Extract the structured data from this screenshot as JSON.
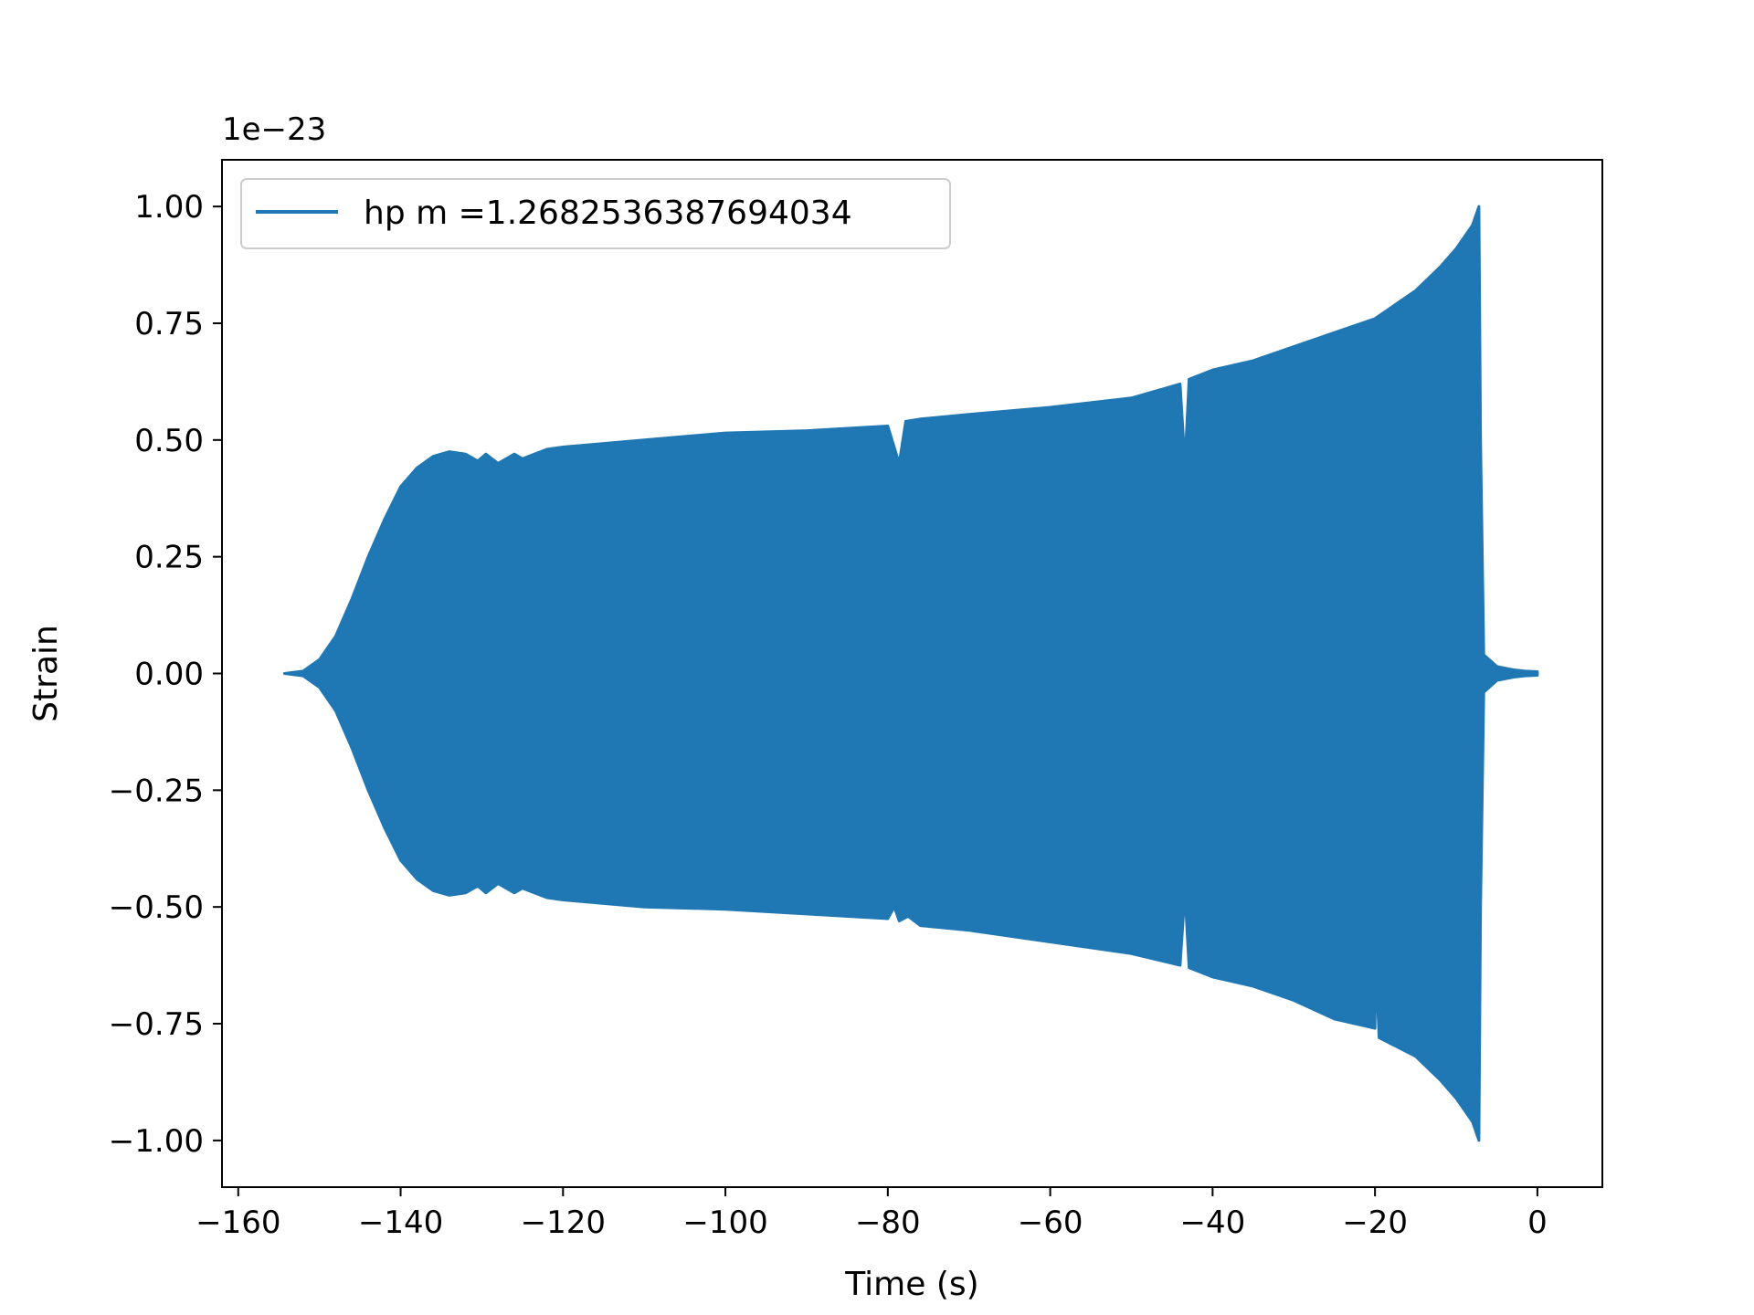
{
  "chart_data": {
    "type": "line",
    "xlabel": "Time (s)",
    "ylabel": "Strain",
    "offset_text": "1e−23",
    "xlim": [
      -162,
      8
    ],
    "ylim": [
      -1.1,
      1.1
    ],
    "x_ticks": [
      -160,
      -140,
      -120,
      -100,
      -80,
      -60,
      -40,
      -20,
      0
    ],
    "x_tick_labels": [
      "−160",
      "−140",
      "−120",
      "−100",
      "−80",
      "−60",
      "−40",
      "−20",
      "0"
    ],
    "y_ticks": [
      1.0,
      0.75,
      0.5,
      0.25,
      0.0,
      -0.25,
      -0.5,
      -0.75,
      -1.0
    ],
    "y_tick_labels": [
      "1.00",
      "0.75",
      "0.50",
      "0.25",
      "0.00",
      "−0.25",
      "−0.50",
      "−0.75",
      "−1.00"
    ],
    "grid": false,
    "legend_position": "top-left",
    "series": [
      {
        "name": "hp m =1.2682536387694034",
        "color": "#1f77b4",
        "envelope_upper": {
          "x": [
            -154.3,
            -152,
            -150,
            -148,
            -146,
            -144,
            -142,
            -140,
            -138,
            -136,
            -134,
            -132,
            -130.5,
            -129.5,
            -128,
            -126,
            -125,
            -122,
            -120,
            -110,
            -100,
            -90,
            -80,
            -78.6,
            -77.8,
            -76,
            -70,
            -60,
            -50,
            -44,
            -43.4,
            -42.9,
            -40,
            -35,
            -30,
            -25,
            -20,
            -15,
            -12,
            -10,
            -8,
            -7.2,
            -7.0,
            -6.6,
            -5,
            -3,
            -1.5,
            0
          ],
          "y": [
            0.0,
            0.005,
            0.03,
            0.08,
            0.16,
            0.25,
            0.33,
            0.4,
            0.44,
            0.465,
            0.475,
            0.47,
            0.455,
            0.47,
            0.45,
            0.47,
            0.46,
            0.48,
            0.485,
            0.5,
            0.515,
            0.52,
            0.53,
            0.45,
            0.54,
            0.545,
            0.555,
            0.57,
            0.59,
            0.62,
            0.45,
            0.63,
            0.65,
            0.67,
            0.7,
            0.73,
            0.76,
            0.82,
            0.87,
            0.91,
            0.96,
            1.0,
            0.5,
            0.04,
            0.015,
            0.008,
            0.005,
            0.004
          ]
        },
        "envelope_lower": {
          "x": [
            -154.3,
            -152,
            -150,
            -148,
            -146,
            -144,
            -142,
            -140,
            -138,
            -136,
            -134,
            -132,
            -130.5,
            -129.5,
            -128,
            -126,
            -125,
            -122,
            -120,
            -110,
            -100,
            -90,
            -80,
            -79.2,
            -78.6,
            -77.5,
            -76,
            -70,
            -60,
            -50,
            -44,
            -43.4,
            -42.9,
            -40,
            -35,
            -30,
            -25,
            -20,
            -19.9,
            -19.5,
            -15,
            -12,
            -10,
            -8,
            -7.2,
            -7.0,
            -6.6,
            -5,
            -3,
            -1.5,
            0
          ],
          "y": [
            0.0,
            -0.005,
            -0.03,
            -0.08,
            -0.16,
            -0.25,
            -0.33,
            -0.4,
            -0.44,
            -0.465,
            -0.475,
            -0.47,
            -0.455,
            -0.47,
            -0.45,
            -0.47,
            -0.46,
            -0.48,
            -0.485,
            -0.5,
            -0.505,
            -0.515,
            -0.525,
            -0.5,
            -0.53,
            -0.52,
            -0.54,
            -0.55,
            -0.575,
            -0.6,
            -0.625,
            -0.47,
            -0.63,
            -0.65,
            -0.67,
            -0.7,
            -0.74,
            -0.76,
            -0.62,
            -0.78,
            -0.82,
            -0.87,
            -0.91,
            -0.96,
            -1.0,
            -0.5,
            -0.04,
            -0.015,
            -0.008,
            -0.005,
            -0.004
          ]
        }
      }
    ]
  }
}
